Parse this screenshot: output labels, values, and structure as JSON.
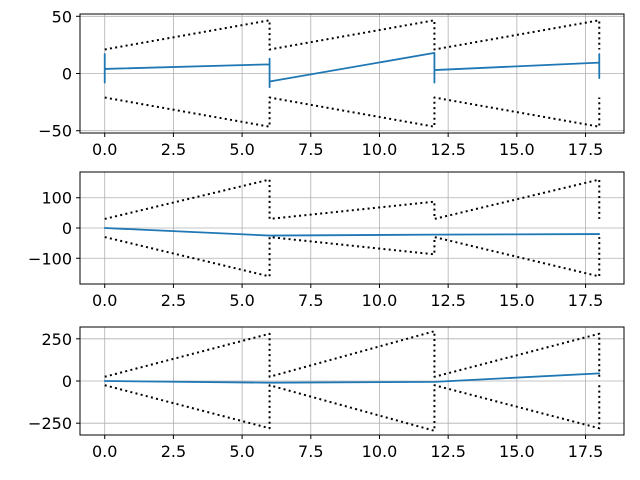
{
  "chart_data": [
    {
      "type": "line",
      "title": "",
      "xlabel": "",
      "ylabel": "",
      "xlim": [
        -0.9,
        18.9
      ],
      "ylim": [
        -52,
        52
      ],
      "grid": true,
      "xticks": [
        0,
        2.5,
        5,
        7.5,
        10,
        12.5,
        15,
        17.5
      ],
      "xtick_labels": [
        "0.0",
        "2.5",
        "5.0",
        "7.5",
        "10.0",
        "12.5",
        "15.0",
        "17.5"
      ],
      "yticks": [
        -50,
        0,
        50
      ],
      "ytick_labels": [
        "−50",
        "0",
        "50"
      ],
      "series": [
        {
          "style": "solid",
          "color": "#1f77b4",
          "x": [
            0,
            0,
            0,
            0,
            0,
            0,
            6,
            6,
            6,
            6,
            6,
            6,
            12,
            12,
            12,
            12,
            12,
            12,
            18,
            18,
            18,
            18,
            18
          ],
          "y": [
            4,
            17,
            -8,
            14,
            -5,
            4,
            8,
            0,
            13,
            -12,
            7,
            -7,
            18,
            -8,
            9,
            -6,
            6,
            3,
            9.5,
            17,
            -4,
            14,
            0
          ]
        },
        {
          "style": "dotted",
          "color": "#000000",
          "x": [
            0,
            6,
            6,
            12,
            12,
            18,
            18
          ],
          "y": [
            21,
            46.5,
            21,
            46.5,
            21,
            46.5,
            21
          ]
        },
        {
          "style": "dotted",
          "color": "#000000",
          "x": [
            0,
            6,
            6,
            12,
            12,
            18,
            18
          ],
          "y": [
            -21,
            -46.5,
            -21,
            -46.5,
            -21,
            -46.5,
            -21
          ]
        }
      ]
    },
    {
      "type": "line",
      "title": "",
      "xlabel": "",
      "ylabel": "",
      "xlim": [
        -0.9,
        18.9
      ],
      "ylim": [
        -185,
        185
      ],
      "grid": true,
      "xticks": [
        0,
        2.5,
        5,
        7.5,
        10,
        12.5,
        15,
        17.5
      ],
      "xtick_labels": [
        "0.0",
        "2.5",
        "5.0",
        "7.5",
        "10.0",
        "12.5",
        "15.0",
        "17.5"
      ],
      "yticks": [
        -100,
        0,
        100
      ],
      "ytick_labels": [
        "−100",
        "0",
        "100"
      ],
      "series": [
        {
          "style": "solid",
          "color": "#1f77b4",
          "x": [
            0,
            6,
            12,
            18
          ],
          "y": [
            0,
            -25,
            -22,
            -20
          ]
        },
        {
          "style": "dotted",
          "color": "#000000",
          "x": [
            0,
            6,
            6,
            12,
            12,
            18,
            18
          ],
          "y": [
            30,
            160,
            30,
            87,
            30,
            160,
            30
          ]
        },
        {
          "style": "dotted",
          "color": "#000000",
          "x": [
            0,
            6,
            6,
            12,
            12,
            18,
            18
          ],
          "y": [
            -30,
            -160,
            -30,
            -87,
            -30,
            -160,
            -30
          ]
        }
      ]
    },
    {
      "type": "line",
      "title": "",
      "xlabel": "",
      "ylabel": "",
      "xlim": [
        -0.9,
        18.9
      ],
      "ylim": [
        -320,
        320
      ],
      "grid": true,
      "xticks": [
        0,
        2.5,
        5,
        7.5,
        10,
        12.5,
        15,
        17.5
      ],
      "xtick_labels": [
        "0.0",
        "2.5",
        "5.0",
        "7.5",
        "10.0",
        "12.5",
        "15.0",
        "17.5"
      ],
      "yticks": [
        -250,
        0,
        250
      ],
      "ytick_labels": [
        "−250",
        "0",
        "250"
      ],
      "series": [
        {
          "style": "solid",
          "color": "#1f77b4",
          "x": [
            0,
            6,
            12,
            18
          ],
          "y": [
            0,
            -10,
            -5,
            45
          ]
        },
        {
          "style": "dotted",
          "color": "#000000",
          "x": [
            0,
            6,
            6,
            12,
            12,
            18,
            18
          ],
          "y": [
            25,
            280,
            25,
            295,
            25,
            280,
            25
          ]
        },
        {
          "style": "dotted",
          "color": "#000000",
          "x": [
            0,
            6,
            6,
            12,
            12,
            18,
            18
          ],
          "y": [
            -25,
            -280,
            -25,
            -295,
            -25,
            -280,
            -25
          ]
        }
      ]
    }
  ]
}
